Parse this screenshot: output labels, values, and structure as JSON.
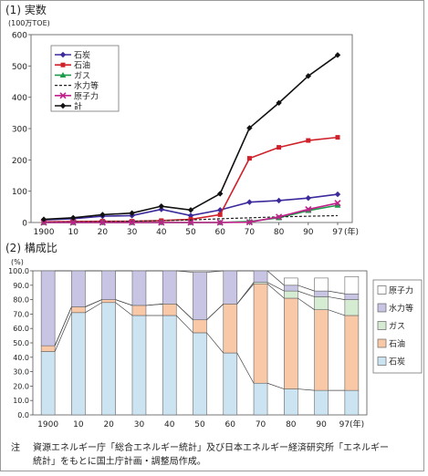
{
  "chart_data": [
    {
      "type": "line",
      "title": "(1) 実数",
      "ylabel": "(100万TOE)",
      "ylim": [
        0,
        600
      ],
      "yticks": [
        0,
        100,
        200,
        300,
        400,
        500,
        600
      ],
      "x_labels": [
        "1900",
        "10",
        "20",
        "30",
        "40",
        "50",
        "60",
        "70",
        "80",
        "90",
        "97"
      ],
      "x_unit": "(年)",
      "grid": false,
      "legend_position": "top-left",
      "series": [
        {
          "name": "石炭",
          "color": "#3b2a9c",
          "marker": "diamond",
          "dash": "",
          "values": [
            8,
            12,
            20,
            22,
            42,
            22,
            40,
            65,
            70,
            78,
            90
          ]
        },
        {
          "name": "石油",
          "color": "#d0202a",
          "marker": "square",
          "dash": "",
          "values": [
            2,
            3,
            4,
            4,
            6,
            10,
            25,
            205,
            240,
            262,
            272
          ]
        },
        {
          "name": "ガス",
          "color": "#1e9a4a",
          "marker": "triangle",
          "dash": "",
          "values": [
            0,
            0,
            0,
            0,
            0,
            0,
            0,
            3,
            15,
            38,
            55
          ]
        },
        {
          "name": "水力等",
          "color": "#222222",
          "marker": "none",
          "dash": "3,2",
          "values": [
            1,
            2,
            3,
            4,
            6,
            8,
            12,
            15,
            18,
            20,
            22
          ]
        },
        {
          "name": "原子力",
          "color": "#c0208a",
          "marker": "x",
          "dash": "",
          "values": [
            0,
            0,
            0,
            0,
            0,
            0,
            0,
            1,
            18,
            42,
            62
          ]
        },
        {
          "name": "計",
          "color": "#111111",
          "marker": "diamond",
          "dash": "",
          "values": [
            10,
            15,
            25,
            30,
            52,
            40,
            92,
            302,
            382,
            468,
            535
          ]
        }
      ]
    },
    {
      "type": "bar",
      "stacked": true,
      "title": "(2) 構成比",
      "ylabel": "(%)",
      "ylim": [
        0,
        100
      ],
      "yticks": [
        "0.0",
        "10.0",
        "20.0",
        "30.0",
        "40.0",
        "50.0",
        "60.0",
        "70.0",
        "80.0",
        "90.0",
        "100.0"
      ],
      "categories": [
        "1900",
        "10",
        "20",
        "30",
        "40",
        "50",
        "60",
        "70",
        "80",
        "90",
        "97"
      ],
      "x_labels": [
        "1900",
        "10",
        "20",
        "30",
        "40",
        "50",
        "60",
        "70",
        "80",
        "90",
        "97(年)"
      ],
      "legend_position": "right",
      "series": [
        {
          "name": "石炭",
          "color": "#cce4f2",
          "values": [
            44,
            71,
            78,
            69,
            69,
            57,
            43,
            22,
            18,
            17,
            17
          ]
        },
        {
          "name": "石油",
          "color": "#f9c8a6",
          "values": [
            4,
            4,
            2,
            7,
            8,
            9,
            34,
            69,
            63,
            56,
            52
          ]
        },
        {
          "name": "ガス",
          "color": "#d6ecd2",
          "values": [
            0,
            0,
            0,
            0,
            0,
            0,
            0,
            1,
            5,
            9,
            11
          ]
        },
        {
          "name": "水力等",
          "color": "#c7c4e4",
          "values": [
            52,
            25,
            20,
            24,
            23,
            33,
            23,
            8,
            4,
            4,
            4
          ]
        },
        {
          "name": "原子力",
          "color": "#ffffff",
          "values": [
            0,
            0,
            0,
            0,
            0,
            0,
            0,
            0,
            5,
            9,
            12
          ]
        }
      ]
    }
  ],
  "note": {
    "label": "注",
    "line1": "資源エネルギー庁「総合エネルギー統計」及び日本エネルギー経済研究所「エネルギー",
    "line2": "統計」をもとに国土庁計画・調整局作成。"
  }
}
